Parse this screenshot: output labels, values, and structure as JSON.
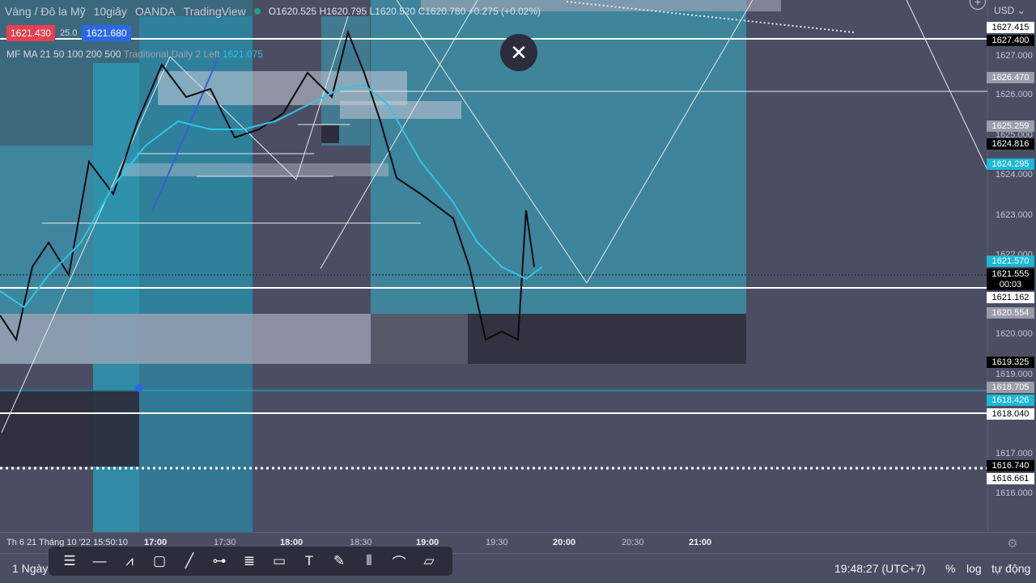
{
  "header": {
    "symbol": "Vàng / Đô la Mỹ",
    "interval": "10giây",
    "broker": "OANDA",
    "platform": "TradingView",
    "ohlc": "O1620.525 H1620.795 L1620.520 C1620.780 +0.275 (+0.02%)"
  },
  "quote": {
    "bid": "1621.430",
    "spread": "25.0",
    "ask": "1621.680"
  },
  "indicator": {
    "name": "MF MA 21 50 100 200 500",
    "params": "Traditional Daily 2 Left",
    "value": "1621.075"
  },
  "price_axis": {
    "currency": "USD",
    "ticks": [
      "1627.000",
      "1626.000",
      "1625.000",
      "1624.000",
      "1623.000",
      "1622.000",
      "1620.000",
      "1619.000",
      "1617.000",
      "1616.000"
    ],
    "labels": [
      {
        "text": "1627.415",
        "style": "white"
      },
      {
        "text": "1627.400",
        "style": "black"
      },
      {
        "text": "1626.470",
        "style": "gray"
      },
      {
        "text": "1625.259",
        "style": "gray"
      },
      {
        "text": "1624.816",
        "style": "black"
      },
      {
        "text": "1624.295",
        "style": "cyan"
      },
      {
        "text": "1621.570",
        "style": "cyan"
      },
      {
        "text": "1621.555",
        "style": "black"
      },
      {
        "text": "00:03",
        "style": "black"
      },
      {
        "text": "1621.162",
        "style": "white"
      },
      {
        "text": "1620.554",
        "style": "gray"
      },
      {
        "text": "1619.325",
        "style": "black"
      },
      {
        "text": "1618.705",
        "style": "gray"
      },
      {
        "text": "1618.426",
        "style": "cyan"
      },
      {
        "text": "1618.040",
        "style": "white"
      },
      {
        "text": "1616.740",
        "style": "black"
      },
      {
        "text": "1616.661",
        "style": "white"
      }
    ]
  },
  "time_axis": {
    "first_label": "Th 6 21 Tháng 10 '22   15:50:10",
    "labels": [
      {
        "text": "17:00",
        "bold": true
      },
      {
        "text": "17:30",
        "bold": false
      },
      {
        "text": "18:00",
        "bold": true
      },
      {
        "text": "18:30",
        "bold": false
      },
      {
        "text": "19:00",
        "bold": true
      },
      {
        "text": "19:30",
        "bold": false
      },
      {
        "text": "20:00",
        "bold": true
      },
      {
        "text": "20:30",
        "bold": false
      },
      {
        "text": "21:00",
        "bold": true
      }
    ]
  },
  "bottom_bar": {
    "range": "1 Ngày",
    "clock": "19:48:27 (UTC+7)",
    "percent": "%",
    "log": "log",
    "auto": "tự động"
  },
  "toolbar": {
    "tools": [
      "horizontal-ray-icon",
      "horizontal-line-icon",
      "path-icon",
      "rectangle-icon",
      "trend-line-icon",
      "horizontal-segment-icon",
      "fib-retracement-icon",
      "callout-icon",
      "text-icon",
      "brush-icon",
      "long-position-icon",
      "curve-icon",
      "note-icon"
    ]
  },
  "colors": {
    "background": "#4b4e63",
    "cyan": "#1bb9d4",
    "bid": "#e5404f",
    "ask": "#2b68e8"
  }
}
